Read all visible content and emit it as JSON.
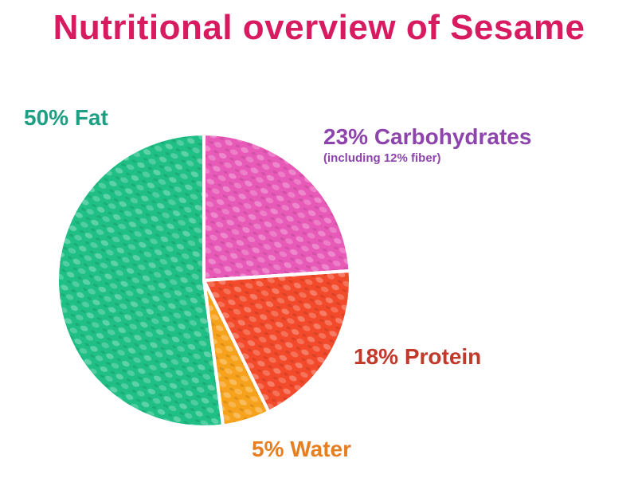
{
  "title": "Nutritional overview of Sesame",
  "chart_data": {
    "type": "pie",
    "title": "Nutritional overview of Sesame",
    "slices": [
      {
        "label": "50% Fat",
        "value": 50,
        "color": "#1fbf86"
      },
      {
        "label": "23% Carbohydrates",
        "note": "(including 12% fiber)",
        "value": 23,
        "color": "#e85ab8"
      },
      {
        "label": "18% Protein",
        "value": 18,
        "color": "#f24a2a"
      },
      {
        "label": "5% Water",
        "value": 5,
        "color": "#f7a21c"
      }
    ],
    "label_colors": {
      "fat": "#1e9e82",
      "carbs": "#8e44ad",
      "protein": "#c0392b",
      "water": "#e67e22"
    }
  }
}
